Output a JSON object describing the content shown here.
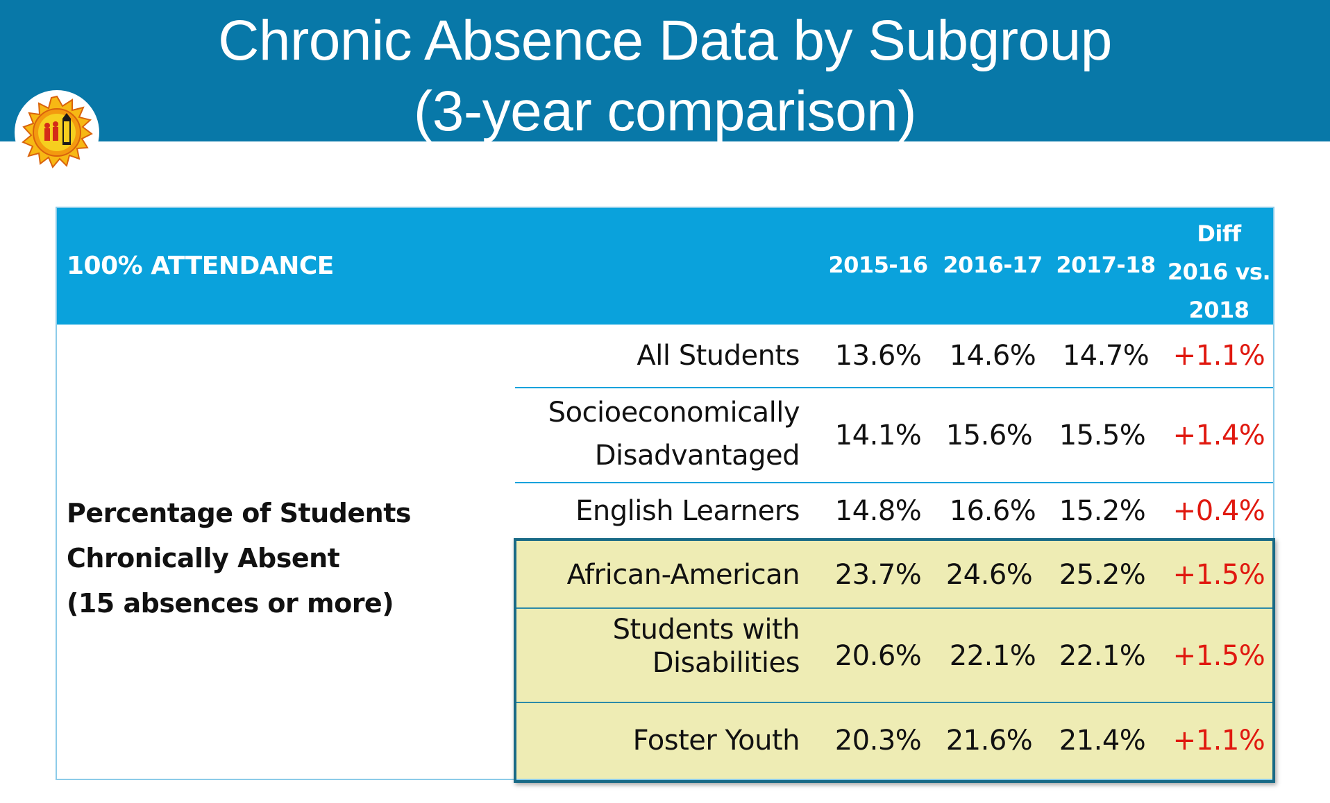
{
  "slide": {
    "title_line1": "Chronic Absence Data by Subgroup",
    "title_line2": "(3-year comparison)",
    "banner_color": "#0878a8",
    "logo_icon": "school-district-seal-icon"
  },
  "table": {
    "header_label": "100% ATTENDANCE",
    "columns": [
      "2015-16",
      "2016-17",
      "2017-18"
    ],
    "diff_header": [
      "Diff",
      "2016 vs.",
      "2018"
    ],
    "row_group_label": [
      "Percentage of Students",
      "Chronically Absent",
      "(15 absences or more)"
    ],
    "header_color": "#0aa2dc",
    "highlight_color": "#eeecb4",
    "diff_color": "#e0180f",
    "rows": [
      {
        "name": [
          "All Students"
        ],
        "values": [
          "13.6%",
          "14.6%",
          "14.7%"
        ],
        "diff": "+1.1%",
        "highlighted": false
      },
      {
        "name": [
          "Socioeconomically",
          "Disadvantaged"
        ],
        "values": [
          "14.1%",
          "15.6%",
          "15.5%"
        ],
        "diff": "+1.4%",
        "highlighted": false
      },
      {
        "name": [
          "English Learners"
        ],
        "values": [
          "14.8%",
          "16.6%",
          "15.2%"
        ],
        "diff": "+0.4%",
        "highlighted": false
      },
      {
        "name": [
          "African-American"
        ],
        "values": [
          "23.7%",
          "24.6%",
          "25.2%"
        ],
        "diff": "+1.5%",
        "highlighted": true
      },
      {
        "name": [
          "Students with",
          "Disabilities"
        ],
        "values": [
          "20.6%",
          "22.1%",
          "22.1%"
        ],
        "diff": "+1.5%",
        "highlighted": true
      },
      {
        "name": [
          "Foster Youth"
        ],
        "values": [
          "20.3%",
          "21.6%",
          "21.4%"
        ],
        "diff": "+1.1%",
        "highlighted": true
      }
    ]
  }
}
